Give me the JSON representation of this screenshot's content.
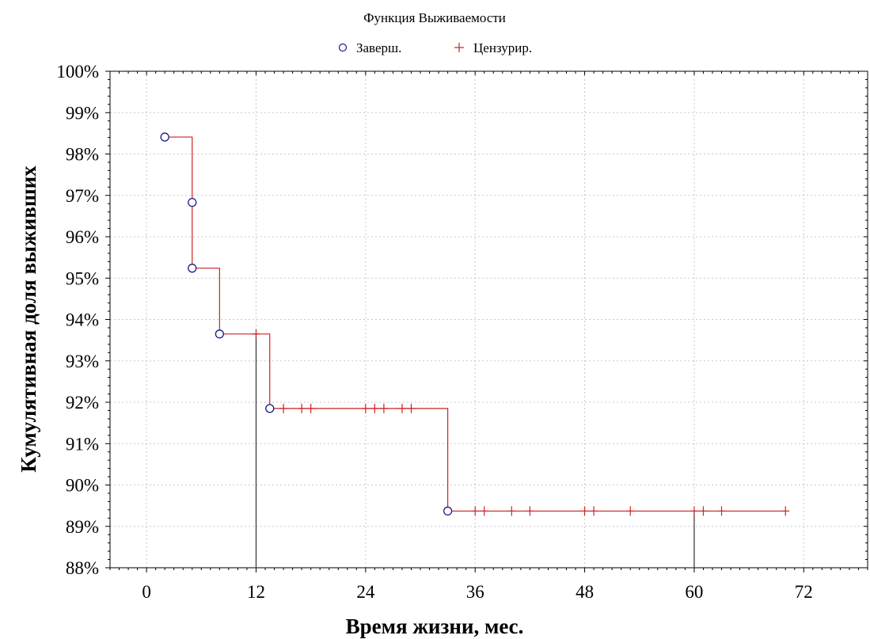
{
  "chart_data": {
    "type": "line",
    "title": "Функция Выживаемости",
    "xlabel": "Время жизни, мес.",
    "ylabel": "Кумулятивная доля выживших",
    "xlim": [
      -4,
      79
    ],
    "ylim": [
      88,
      100
    ],
    "x_ticks": [
      0,
      12,
      24,
      36,
      48,
      60,
      72
    ],
    "y_ticks": [
      88,
      89,
      90,
      91,
      92,
      93,
      94,
      95,
      96,
      97,
      98,
      99,
      100
    ],
    "y_tick_suffix": "%",
    "grid": true,
    "legend_position": "top-center",
    "legend": [
      {
        "name": "Заверш.",
        "marker": "circle",
        "color": "#1a1a8c"
      },
      {
        "name": "Цензурир.",
        "marker": "plus",
        "color": "#cc2222"
      }
    ],
    "colors": {
      "line": "#cc2222",
      "complete": "#1a1a8c",
      "censored": "#cc2222",
      "reference": "#333333"
    },
    "survival_curve": [
      {
        "x": 2,
        "y": 98.41
      },
      {
        "x": 5,
        "y": 96.83
      },
      {
        "x": 5,
        "y": 95.24
      },
      {
        "x": 8,
        "y": 93.65
      },
      {
        "x": 13.5,
        "y": 91.85
      },
      {
        "x": 33,
        "y": 89.37
      },
      {
        "x": 70,
        "y": 89.37
      }
    ],
    "complete_events": [
      {
        "x": 2,
        "y": 98.41
      },
      {
        "x": 5,
        "y": 96.83
      },
      {
        "x": 5,
        "y": 95.24
      },
      {
        "x": 8,
        "y": 93.65
      },
      {
        "x": 13.5,
        "y": 91.85
      },
      {
        "x": 33,
        "y": 89.37
      }
    ],
    "censored_events": [
      {
        "x": 12,
        "y": 93.65
      },
      {
        "x": 15,
        "y": 91.85
      },
      {
        "x": 17,
        "y": 91.85
      },
      {
        "x": 18,
        "y": 91.85
      },
      {
        "x": 24,
        "y": 91.85
      },
      {
        "x": 25,
        "y": 91.85
      },
      {
        "x": 26,
        "y": 91.85
      },
      {
        "x": 28,
        "y": 91.85
      },
      {
        "x": 29,
        "y": 91.85
      },
      {
        "x": 36,
        "y": 89.37
      },
      {
        "x": 37,
        "y": 89.37
      },
      {
        "x": 40,
        "y": 89.37
      },
      {
        "x": 42,
        "y": 89.37
      },
      {
        "x": 48,
        "y": 89.37
      },
      {
        "x": 49,
        "y": 89.37
      },
      {
        "x": 53,
        "y": 89.37
      },
      {
        "x": 60,
        "y": 89.37
      },
      {
        "x": 61,
        "y": 89.37
      },
      {
        "x": 63,
        "y": 89.37
      },
      {
        "x": 70,
        "y": 89.37
      }
    ],
    "reference_lines": [
      {
        "x": 12,
        "y": 93.65
      },
      {
        "x": 60,
        "y": 89.37
      }
    ]
  }
}
